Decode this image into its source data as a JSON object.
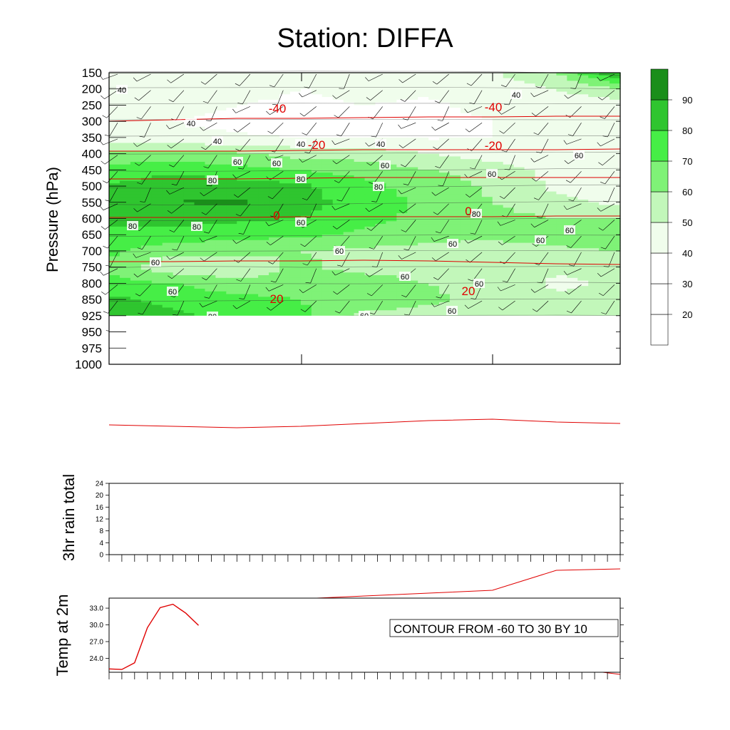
{
  "title": "Station: DIFFA",
  "colors": {
    "rh_fills": [
      "#ffffff",
      "#ffffff",
      "#ffffff",
      "#f0fdec",
      "#c2f7ba",
      "#7ff277",
      "#46ee46",
      "#2fc52f",
      "#1a8e1a"
    ],
    "temp_line": "#e00000",
    "wind_barb": "#000000"
  },
  "chart_data": [
    {
      "type": "heatmap",
      "name": "pressure-time cross section",
      "ylabel": "Pressure (hPa)",
      "y_ticks": [
        150,
        200,
        250,
        300,
        350,
        400,
        450,
        500,
        550,
        600,
        650,
        700,
        750,
        800,
        850,
        925,
        950,
        975,
        1000
      ],
      "x_segments": 8,
      "colorbar": {
        "levels": [
          20,
          30,
          40,
          50,
          60,
          70,
          80,
          90
        ],
        "labels": [
          "20",
          "30",
          "40",
          "50",
          "60",
          "70",
          "80",
          "90"
        ]
      },
      "rh_grid": {
        "x": [
          0,
          1,
          2,
          3,
          4,
          5,
          6,
          7,
          8
        ],
        "levels_index": [
          0,
          1,
          2,
          3,
          4,
          5,
          6,
          7,
          8,
          9,
          10,
          11,
          12,
          13,
          14,
          15
        ],
        "values": [
          [
            45,
            48,
            46,
            42,
            44,
            43,
            48,
            60,
            90
          ],
          [
            46,
            45,
            44,
            40,
            42,
            41,
            46,
            50,
            60
          ],
          [
            44,
            42,
            40,
            38,
            40,
            39,
            42,
            43,
            45
          ],
          [
            42,
            40,
            38,
            36,
            38,
            38,
            40,
            42,
            43
          ],
          [
            45,
            42,
            41,
            40,
            40,
            39,
            40,
            41,
            42
          ],
          [
            65,
            62,
            62,
            56,
            55,
            50,
            45,
            42,
            40
          ],
          [
            72,
            78,
            74,
            70,
            66,
            60,
            56,
            46,
            42
          ],
          [
            82,
            86,
            84,
            82,
            72,
            66,
            58,
            48,
            44
          ],
          [
            85,
            90,
            92,
            85,
            74,
            68,
            60,
            52,
            48
          ],
          [
            82,
            84,
            82,
            80,
            72,
            68,
            64,
            60,
            60
          ],
          [
            78,
            76,
            74,
            72,
            68,
            64,
            62,
            64,
            66
          ],
          [
            72,
            64,
            62,
            60,
            58,
            56,
            56,
            58,
            60
          ],
          [
            68,
            52,
            54,
            62,
            56,
            54,
            55,
            52,
            54
          ],
          [
            74,
            70,
            62,
            64,
            66,
            60,
            55,
            48,
            52
          ],
          [
            82,
            78,
            74,
            70,
            66,
            62,
            56,
            52,
            55
          ],
          [
            84,
            82,
            76,
            72,
            58,
            56,
            55,
            54,
            56
          ]
        ]
      },
      "rh_contour_labels": [
        "40",
        "40",
        "40",
        "40",
        "40",
        "40",
        "60",
        "60",
        "60",
        "60",
        "80",
        "80",
        "80",
        "60",
        "80",
        "80",
        "60",
        "60",
        "80",
        "60",
        "60",
        "60",
        "60",
        "60",
        "60",
        "60",
        "60",
        "80",
        "60"
      ],
      "temp_contour_labels": [
        "-40",
        "-40",
        "-20",
        "-20",
        "0",
        "0",
        "20",
        "20",
        "20"
      ],
      "temp_isotherms": [
        {
          "value": -50,
          "y": [
            170,
            168,
            166,
            166,
            165,
            164,
            164,
            163,
            163
          ]
        },
        {
          "value": -45,
          "y": [
            212,
            212,
            212,
            211,
            210,
            210,
            210,
            210,
            209
          ]
        },
        {
          "value": -40,
          "y": [
            251,
            251,
            251,
            250,
            249,
            249,
            249,
            249,
            249
          ]
        },
        {
          "value": -30,
          "y": [
            305,
            305,
            305,
            304,
            304,
            304,
            304,
            303,
            303
          ]
        },
        {
          "value": -20,
          "y": [
            367,
            367,
            366,
            366,
            365,
            366,
            368,
            370,
            371
          ]
        },
        {
          "value": -10,
          "y": [
            453,
            454,
            456,
            456,
            456,
            458,
            462,
            468,
            473
          ]
        },
        {
          "value": 0,
          "y": [
            596,
            598,
            600,
            598,
            594,
            590,
            588,
            592,
            594
          ]
        },
        {
          "value": 10,
          "y": [
            705,
            704,
            704,
            703,
            703,
            702,
            701,
            700,
            700
          ]
        },
        {
          "value": 20,
          "y": [
            855,
            848,
            843,
            840,
            836,
            832,
            828,
            800,
            798
          ]
        },
        {
          "value": 30,
          "y": [
            null,
            null,
            null,
            null,
            940,
            932,
            932,
            935,
            946
          ]
        }
      ],
      "wind_barbs": true,
      "note": "CONTOUR FROM -60 TO 30 BY 10"
    },
    {
      "type": "line",
      "name": "rain",
      "ylabel": "3hr rain total",
      "y_ticks": [
        0,
        4,
        8,
        12,
        16,
        20,
        24
      ],
      "ylim": [
        0,
        24
      ],
      "series": [
        {
          "name": "",
          "values": []
        }
      ]
    },
    {
      "type": "line",
      "name": "temp2m",
      "ylabel": "Temp at 2m",
      "y_ticks": [
        "24.0",
        "27.0",
        "30.0",
        "33.0"
      ],
      "ylim": [
        21.5,
        34.8
      ],
      "x": [
        0,
        1,
        2,
        3,
        4,
        5,
        6,
        7
      ],
      "series": [
        {
          "name": "",
          "values": [
            22.1,
            22.0,
            23.2,
            29.5,
            33.1,
            33.7,
            32.1,
            29.9
          ]
        }
      ]
    }
  ]
}
